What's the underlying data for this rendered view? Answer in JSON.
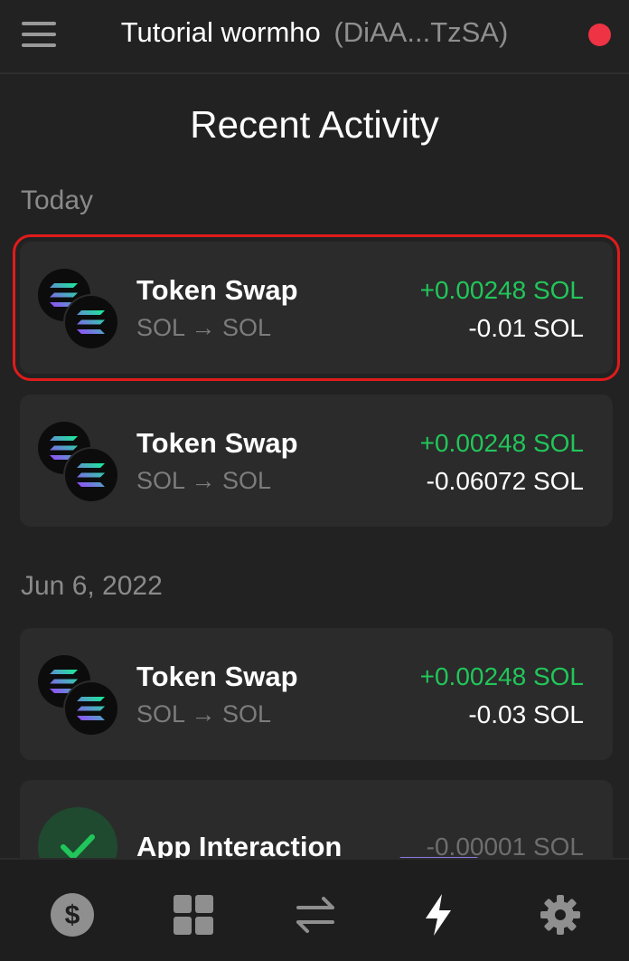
{
  "header": {
    "title": "Tutorial wormho",
    "address": "(DiAA...TzSA)",
    "status_color": "#ee3344",
    "menu_icon": "hamburger-menu-icon"
  },
  "page": {
    "title": "Recent Activity"
  },
  "sections": [
    {
      "label": "Today",
      "items": [
        {
          "title": "Token Swap",
          "subtitle": "SOL → SOL",
          "amount_in": "+0.00248 SOL",
          "amount_out": "-0.01 SOL",
          "icon": "solana-token-pair-icon",
          "selected": true
        },
        {
          "title": "Token Swap",
          "subtitle": "SOL → SOL",
          "amount_in": "+0.00248 SOL",
          "amount_out": "-0.06072 SOL",
          "icon": "solana-token-pair-icon"
        }
      ]
    },
    {
      "label": "Jun 6, 2022",
      "items": [
        {
          "title": "Token Swap",
          "subtitle": "SOL → SOL",
          "amount_in": "+0.00248 SOL",
          "amount_out": "-0.03 SOL",
          "icon": "solana-token-pair-icon"
        },
        {
          "title": "App Interaction",
          "amount_out": "-0.00001 SOL",
          "icon": "check-icon"
        }
      ]
    }
  ],
  "bottom_nav": [
    {
      "icon": "dollar-icon",
      "active": false
    },
    {
      "icon": "grid-icon",
      "active": false
    },
    {
      "icon": "swap-arrows-icon",
      "active": false
    },
    {
      "icon": "lightning-icon",
      "active": true
    },
    {
      "icon": "gear-icon",
      "active": false
    }
  ],
  "colors": {
    "positive": "#21c65a",
    "negative": "#ffffff",
    "muted": "#8a8a8a",
    "selection_outline": "#e01b1b",
    "accent": "#8a7ae6"
  }
}
